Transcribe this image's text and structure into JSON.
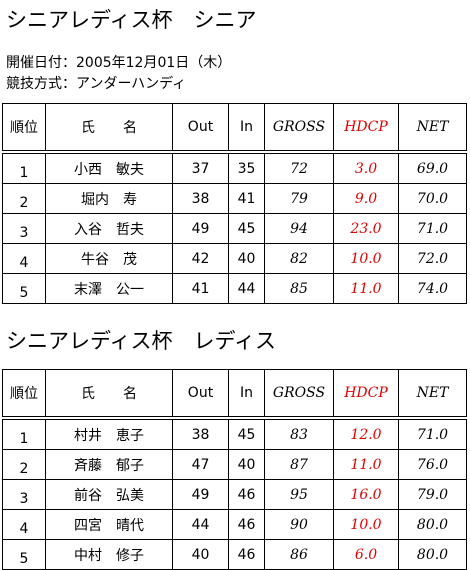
{
  "sections": [
    {
      "title": "シニアレディス杯　シニア",
      "info": [
        "開催日付：2005年12月01日（木）",
        "競技方式：アンダーハンディ"
      ],
      "table": {
        "header": [
          "順位",
          "氏　　名",
          "Out",
          "In",
          "GROSS",
          "HDCP",
          "NET"
        ],
        "rows": [
          [
            "1",
            "小西　敏夫",
            "37",
            "35",
            "72",
            "3.0",
            "69.0"
          ],
          [
            "2",
            "堀内　寿",
            "38",
            "41",
            "79",
            "9.0",
            "70.0"
          ],
          [
            "3",
            "入谷　哲夫",
            "49",
            "45",
            "94",
            "23.0",
            "71.0"
          ],
          [
            "4",
            "牛谷　茂",
            "42",
            "40",
            "82",
            "10.0",
            "72.0"
          ],
          [
            "5",
            "末澤　公一",
            "41",
            "44",
            "85",
            "11.0",
            "74.0"
          ]
        ]
      }
    },
    {
      "title": "シニアレディス杯　レディス",
      "table": {
        "header": [
          "順位",
          "氏　　名",
          "Out",
          "In",
          "GROSS",
          "HDCP",
          "NET"
        ],
        "rows": [
          [
            "1",
            "村井　恵子",
            "38",
            "45",
            "83",
            "12.0",
            "71.0"
          ],
          [
            "2",
            "斉藤　郁子",
            "47",
            "40",
            "87",
            "11.0",
            "76.0"
          ],
          [
            "3",
            "前谷　弘美",
            "49",
            "46",
            "95",
            "16.0",
            "79.0"
          ],
          [
            "4",
            "四宮　晴代",
            "44",
            "46",
            "90",
            "10.0",
            "80.0"
          ],
          [
            "5",
            "中村　修子",
            "40",
            "46",
            "86",
            "6.0",
            "80.0"
          ]
        ]
      }
    }
  ]
}
